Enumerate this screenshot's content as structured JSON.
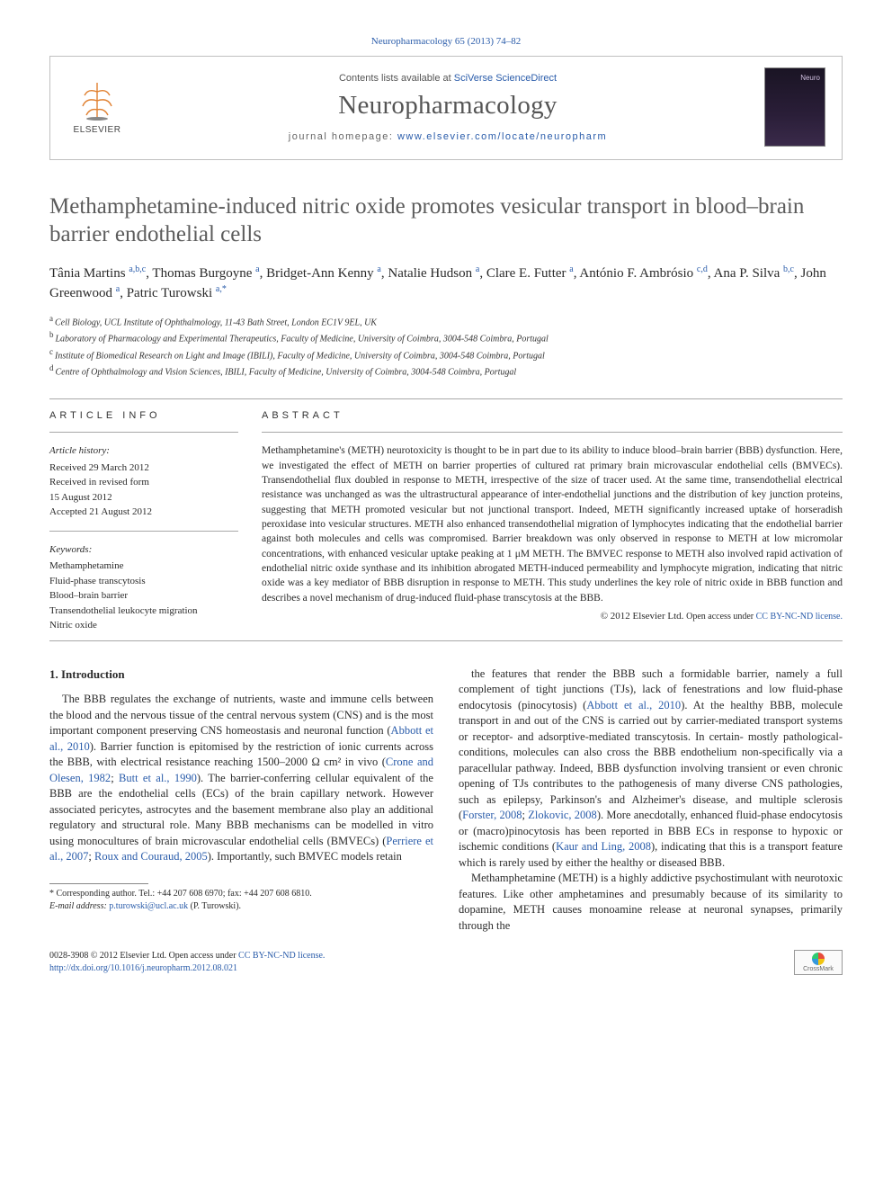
{
  "citation": "Neuropharmacology 65 (2013) 74–82",
  "header": {
    "publisher": "ELSEVIER",
    "contents_prefix": "Contents lists available at ",
    "contents_link": "SciVerse ScienceDirect",
    "journal": "Neuropharmacology",
    "homepage_prefix": "journal homepage: ",
    "homepage_url": "www.elsevier.com/locate/neuropharm",
    "cover_word": "Neuro"
  },
  "title": "Methamphetamine-induced nitric oxide promotes vesicular transport in blood–brain barrier endothelial cells",
  "authors_html": "Tânia Martins <sup>a,b,c</sup>, Thomas Burgoyne <sup>a</sup>, Bridget-Ann Kenny <sup>a</sup>, Natalie Hudson <sup>a</sup>, Clare E. Futter <sup>a</sup>, António F. Ambrósio <sup>c,d</sup>, Ana P. Silva <sup>b,c</sup>, John Greenwood <sup>a</sup>, Patric Turowski <sup>a,*</sup>",
  "affiliations": [
    {
      "tag": "a",
      "text": "Cell Biology, UCL Institute of Ophthalmology, 11-43 Bath Street, London EC1V 9EL, UK"
    },
    {
      "tag": "b",
      "text": "Laboratory of Pharmacology and Experimental Therapeutics, Faculty of Medicine, University of Coimbra, 3004-548 Coimbra, Portugal"
    },
    {
      "tag": "c",
      "text": "Institute of Biomedical Research on Light and Image (IBILI), Faculty of Medicine, University of Coimbra, 3004-548 Coimbra, Portugal"
    },
    {
      "tag": "d",
      "text": "Centre of Ophthalmology and Vision Sciences, IBILI, Faculty of Medicine, University of Coimbra, 3004-548 Coimbra, Portugal"
    }
  ],
  "info": {
    "label": "ARTICLE INFO",
    "history_label": "Article history:",
    "history": [
      "Received 29 March 2012",
      "Received in revised form",
      "15 August 2012",
      "Accepted 21 August 2012"
    ],
    "keywords_label": "Keywords:",
    "keywords": [
      "Methamphetamine",
      "Fluid-phase transcytosis",
      "Blood–brain barrier",
      "Transendothelial leukocyte migration",
      "Nitric oxide"
    ]
  },
  "abstract": {
    "label": "ABSTRACT",
    "text": "Methamphetamine's (METH) neurotoxicity is thought to be in part due to its ability to induce blood–brain barrier (BBB) dysfunction. Here, we investigated the effect of METH on barrier properties of cultured rat primary brain microvascular endothelial cells (BMVECs). Transendothelial flux doubled in response to METH, irrespective of the size of tracer used. At the same time, transendothelial electrical resistance was unchanged as was the ultrastructural appearance of inter-endothelial junctions and the distribution of key junction proteins, suggesting that METH promoted vesicular but not junctional transport. Indeed, METH significantly increased uptake of horseradish peroxidase into vesicular structures. METH also enhanced transendothelial migration of lymphocytes indicating that the endothelial barrier against both molecules and cells was compromised. Barrier breakdown was only observed in response to METH at low micromolar concentrations, with enhanced vesicular uptake peaking at 1 μM METH. The BMVEC response to METH also involved rapid activation of endothelial nitric oxide synthase and its inhibition abrogated METH-induced permeability and lymphocyte migration, indicating that nitric oxide was a key mediator of BBB disruption in response to METH. This study underlines the key role of nitric oxide in BBB function and describes a novel mechanism of drug-induced fluid-phase transcytosis at the BBB.",
    "copyright_prefix": "© 2012 Elsevier Ltd. ",
    "copyright_open": "Open access under ",
    "license_link": "CC BY-NC-ND license."
  },
  "body": {
    "heading": "1.  Introduction",
    "col1": "The BBB regulates the exchange of nutrients, waste and immune cells between the blood and the nervous tissue of the central nervous system (CNS) and is the most important component preserving CNS homeostasis and neuronal function (<a class='ref' href='#'>Abbott et al., 2010</a>). Barrier function is epitomised by the restriction of ionic currents across the BBB, with electrical resistance reaching 1500–2000 Ω cm² in vivo (<a class='ref' href='#'>Crone and Olesen, 1982</a>; <a class='ref' href='#'>Butt et al., 1990</a>). The barrier-conferring cellular equivalent of the BBB are the endothelial cells (ECs) of the brain capillary network. However associated pericytes, astrocytes and the basement membrane also play an additional regulatory and structural role. Many BBB mechanisms can be modelled in vitro using monocultures of brain microvascular endothelial cells (BMVECs) (<a class='ref' href='#'>Perriere et al., 2007</a>; <a class='ref' href='#'>Roux and Couraud, 2005</a>). Importantly, such BMVEC models retain",
    "col2_p1": "the features that render the BBB such a formidable barrier, namely a full complement of tight junctions (TJs), lack of fenestrations and low fluid-phase endocytosis (pinocytosis) (<a class='ref' href='#'>Abbott et al., 2010</a>). At the healthy BBB, molecule transport in and out of the CNS is carried out by carrier-mediated transport systems or receptor- and adsorptive-mediated transcytosis. In certain- mostly pathological-conditions, molecules can also cross the BBB endothelium non-specifically via a paracellular pathway. Indeed, BBB dysfunction involving transient or even chronic opening of TJs contributes to the pathogenesis of many diverse CNS pathologies, such as epilepsy, Parkinson's and Alzheimer's disease, and multiple sclerosis (<a class='ref' href='#'>Forster, 2008</a>; <a class='ref' href='#'>Zlokovic, 2008</a>). More anecdotally, enhanced fluid-phase endocytosis or (macro)pinocytosis has been reported in BBB ECs in response to hypoxic or ischemic conditions (<a class='ref' href='#'>Kaur and Ling, 2008</a>), indicating that this is a transport feature which is rarely used by either the healthy or diseased BBB.",
    "col2_p2": "Methamphetamine (METH) is a highly addictive psychostimulant with neurotoxic features. Like other amphetamines and presumably because of its similarity to dopamine, METH causes monoamine release at neuronal synapses, primarily through the"
  },
  "footnote": {
    "corr": "* Corresponding author. Tel.: +44 207 608 6970; fax: +44 207 608 6810.",
    "email_label": "E-mail address: ",
    "email": "p.turowski@ucl.ac.uk",
    "email_suffix": " (P. Turowski)."
  },
  "footer": {
    "issn_line": "0028-3908 © 2012 Elsevier Ltd. ",
    "open_text": "Open access under ",
    "license": "CC BY-NC-ND license.",
    "doi": "http://dx.doi.org/10.1016/j.neuropharm.2012.08.021",
    "crossmark": "CrossMark"
  },
  "colors": {
    "link": "#2a5caa",
    "text": "#2a2a2a",
    "muted": "#5c5c5c",
    "cover_bg": "#1a1424"
  }
}
